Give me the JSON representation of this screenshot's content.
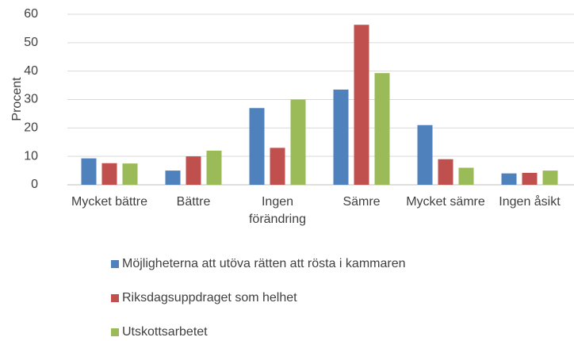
{
  "chart_data": {
    "type": "bar",
    "y_label": "Procent",
    "categories": [
      "Mycket bättre",
      "Bättre",
      "Ingen förändring",
      "Sämre",
      "Mycket sämre",
      "Ingen åsikt"
    ],
    "series": [
      {
        "name": "Möjligheterna att utöva rätten att rösta i kammaren",
        "color": "#4f81bd",
        "values": [
          9.3,
          5,
          27,
          33.5,
          21,
          4
        ]
      },
      {
        "name": "Riksdagsuppdraget som helhet",
        "color": "#c0504d",
        "values": [
          7.6,
          10,
          13,
          56.3,
          9,
          4.2
        ]
      },
      {
        "name": "Utskottsarbetet",
        "color": "#9bbb59",
        "values": [
          7.5,
          12,
          30,
          39.3,
          6,
          5
        ]
      }
    ],
    "ylim": [
      0,
      60
    ],
    "yticks": [
      0,
      10,
      20,
      30,
      40,
      50,
      60
    ],
    "grid": true
  }
}
